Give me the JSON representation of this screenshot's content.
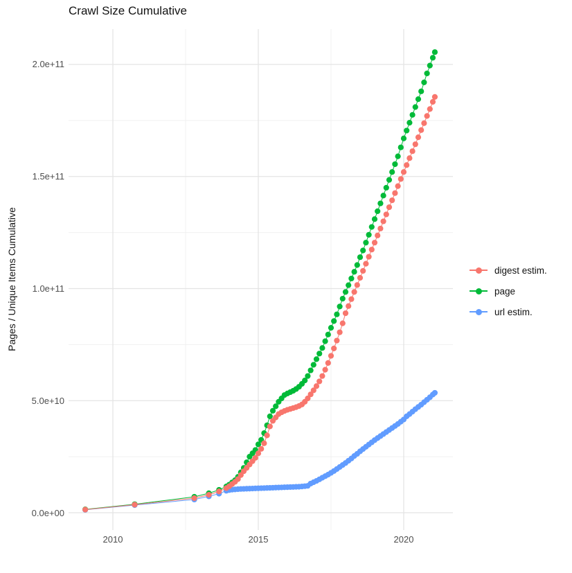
{
  "title": "Crawl Size Cumulative",
  "y_axis": {
    "label": "Pages / Unique Items Cumulative",
    "ticks": [
      "0.0e+00",
      "5.0e+10",
      "1.0e+11",
      "1.5e+11",
      "2.0e+11"
    ]
  },
  "x_axis": {
    "ticks": [
      "2010",
      "2015",
      "2020"
    ]
  },
  "legend": {
    "items": [
      {
        "label": "digest estim.",
        "color": "#F8766D"
      },
      {
        "label": "page",
        "color": "#00BA38"
      },
      {
        "label": "url estim.",
        "color": "#619CFF"
      }
    ]
  },
  "chart_data": {
    "type": "line",
    "markers": true,
    "title": "Crawl Size Cumulative",
    "xlabel": "",
    "ylabel": "Pages / Unique Items Cumulative",
    "x_unit": "year (decimal, crawl date)",
    "y_unit": "cumulative count, values given in billions (1e9)",
    "xlim": [
      2008.5,
      2021.7
    ],
    "ylim": [
      0,
      216000000000.0
    ],
    "grid": true,
    "legend_position": "right",
    "x_ticks": [
      2010,
      2015,
      2020
    ],
    "x_minor_ticks": [
      2012.5,
      2017.5
    ],
    "y_ticks_billions": [
      0,
      50,
      100,
      150,
      200
    ],
    "y_minor_ticks_billions": [
      25,
      75,
      125,
      175
    ],
    "x": [
      2009.05,
      2010.75,
      2012.8,
      2013.3,
      2013.65,
      2013.9,
      2014.0,
      2014.1,
      2014.2,
      2014.3,
      2014.4,
      2014.5,
      2014.6,
      2014.7,
      2014.8,
      2014.9,
      2015.0,
      2015.1,
      2015.2,
      2015.3,
      2015.4,
      2015.5,
      2015.6,
      2015.7,
      2015.8,
      2015.9,
      2016.0,
      2016.1,
      2016.2,
      2016.3,
      2016.4,
      2016.5,
      2016.6,
      2016.7,
      2016.8,
      2016.9,
      2017.0,
      2017.1,
      2017.2,
      2017.3,
      2017.4,
      2017.5,
      2017.6,
      2017.7,
      2017.8,
      2017.9,
      2018.0,
      2018.1,
      2018.2,
      2018.3,
      2018.4,
      2018.5,
      2018.6,
      2018.7,
      2018.8,
      2018.9,
      2019.0,
      2019.1,
      2019.2,
      2019.3,
      2019.4,
      2019.5,
      2019.6,
      2019.7,
      2019.8,
      2019.9,
      2020.0,
      2020.1,
      2020.2,
      2020.3,
      2020.4,
      2020.5,
      2020.6,
      2020.7,
      2020.8,
      2020.9,
      2021.0,
      2021.07
    ],
    "series": [
      {
        "name": "digest estim.",
        "color": "#F8766D",
        "values_billions": [
          1.4,
          3.6,
          6.5,
          8.0,
          9.5,
          11.0,
          11.8,
          12.8,
          13.8,
          15.0,
          16.8,
          18.5,
          20.0,
          21.5,
          23.0,
          24.5,
          26.5,
          28.5,
          31.0,
          34.5,
          38.5,
          41.0,
          42.5,
          44.0,
          44.8,
          45.4,
          45.9,
          46.3,
          46.7,
          47.1,
          47.6,
          48.3,
          49.5,
          51.0,
          52.8,
          54.6,
          56.5,
          58.6,
          61.0,
          63.8,
          66.8,
          70.0,
          73.3,
          76.8,
          80.5,
          84.5,
          89.0,
          92.2,
          95.3,
          98.5,
          101.6,
          104.8,
          107.9,
          111.1,
          114.2,
          117.4,
          120.5,
          123.7,
          126.8,
          130.0,
          133.1,
          136.3,
          139.4,
          142.6,
          145.7,
          148.9,
          152.0,
          155.1,
          158.2,
          161.3,
          164.4,
          167.5,
          170.7,
          173.8,
          177.0,
          180.1,
          183.3,
          185.5
        ]
      },
      {
        "name": "page",
        "color": "#00BA38",
        "values_billions": [
          1.5,
          3.8,
          7.1,
          8.7,
          10.2,
          11.7,
          12.5,
          13.5,
          14.5,
          16.0,
          18.0,
          20.0,
          22.5,
          25.0,
          26.5,
          28.0,
          30.5,
          32.5,
          35.5,
          39.0,
          43.0,
          45.5,
          47.5,
          49.5,
          51.0,
          52.5,
          53.2,
          53.8,
          54.4,
          55.2,
          56.2,
          57.5,
          59.0,
          61.0,
          63.5,
          66.0,
          68.5,
          71.0,
          73.5,
          76.5,
          79.5,
          82.5,
          85.5,
          88.5,
          92.0,
          95.5,
          98.5,
          101.5,
          104.5,
          107.5,
          110.5,
          114.0,
          117.0,
          120.5,
          124.0,
          127.5,
          131.0,
          134.5,
          138.0,
          141.5,
          145.0,
          148.5,
          152.0,
          155.5,
          159.0,
          163.0,
          167.0,
          170.5,
          174.0,
          177.5,
          181.0,
          184.5,
          188.0,
          192.0,
          196.0,
          199.5,
          203.0,
          205.5
        ]
      },
      {
        "name": "url estim.",
        "color": "#619CFF",
        "values_billions": [
          1.3,
          3.4,
          5.9,
          7.3,
          8.5,
          9.8,
          10.1,
          10.3,
          10.4,
          10.5,
          10.6,
          10.65,
          10.7,
          10.75,
          10.8,
          10.85,
          10.9,
          10.95,
          11.0,
          11.05,
          11.1,
          11.15,
          11.2,
          11.25,
          11.3,
          11.35,
          11.4,
          11.45,
          11.5,
          11.55,
          11.6,
          11.7,
          11.85,
          12.0,
          13.0,
          13.6,
          14.2,
          14.9,
          15.6,
          16.3,
          17.0,
          17.8,
          18.6,
          19.5,
          20.4,
          21.3,
          22.2,
          23.2,
          24.2,
          25.3,
          26.3,
          27.4,
          28.4,
          29.4,
          30.4,
          31.4,
          32.4,
          33.3,
          34.2,
          35.1,
          36.0,
          36.9,
          37.8,
          38.7,
          39.6,
          40.6,
          41.6,
          43.0,
          44.0,
          45.1,
          46.2,
          47.2,
          48.2,
          49.3,
          50.4,
          51.5,
          52.7,
          53.5
        ]
      }
    ]
  }
}
